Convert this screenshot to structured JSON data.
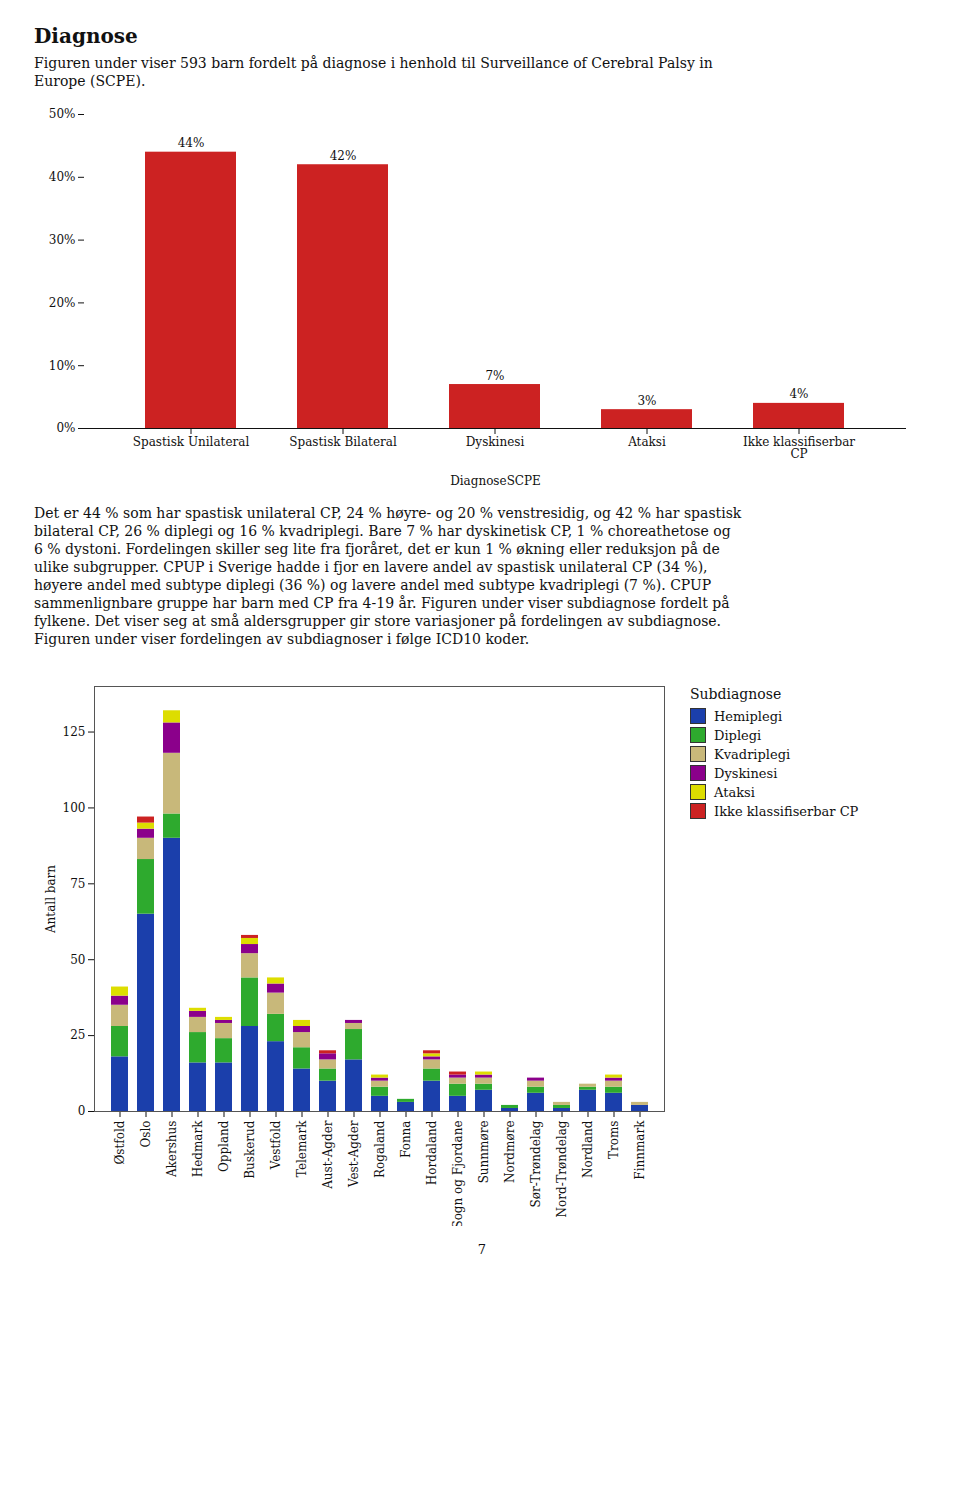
{
  "title": "Diagnose",
  "subtitle": "Figuren under viser 593 barn fordelt på diagnose i henhold til Surveillance of Cerebral Palsy in\nEurope (SCPE).",
  "annotations": [
    "Det er 44 % som har spastisk unilateral CP, 24 % høyre- og 20 % venstresidig, og 42 % har spastisk",
    "bilateral CP, 26 % diplegi og 16 % kvadriplegi. Bare 7 % har dyskinetisk CP, 1 % choreathetose og",
    "6 % dystoni. Fordelingen skiller seg lite fra fjoråret, det er kun 1 % økning eller reduksjon på de",
    "ulike subgrupper. CPUP i Sverige hadde i fjor en lavere andel av spastisk unilateral CP (34 %),",
    "høyere andel med subtype diplegi (36 %) og lavere andel med subtype kvadriplegi (7 %). CPUP",
    "sammenlignbare gruppe har barn med CP fra 4-19 år. Figuren under viser subdiagnose fordelt på",
    "fylkene. Det viser seg at små aldersgrupper gir store variasjoner på fordelingen av subdiagnose.",
    "Figuren under viser fordelingen av subdiagnoser i følge ICD10 koder."
  ],
  "page_number": "7",
  "chart_data": [
    {
      "type": "bar",
      "categories": [
        "Spastisk Unilateral",
        "Spastisk Bilateral",
        "Dyskinesi",
        "Ataksi",
        "Ikke klassifiserbar\nCP"
      ],
      "values": [
        44,
        42,
        7,
        3,
        4
      ],
      "value_labels": [
        "44%",
        "42%",
        "7%",
        "3%",
        "4%"
      ],
      "data_labels": true,
      "color": "#CC2222",
      "xlabel": "DiagnoseSCPE",
      "ylim": [
        0,
        50
      ],
      "yticks": [
        {
          "value": 0,
          "label": "0%"
        },
        {
          "value": 10,
          "label": "10%"
        },
        {
          "value": 20,
          "label": "20%"
        },
        {
          "value": 30,
          "label": "30%"
        },
        {
          "value": 40,
          "label": "40%"
        },
        {
          "value": 50,
          "label": "50%"
        }
      ]
    },
    {
      "type": "bar",
      "stacked": true,
      "categories": [
        "Østfold",
        "Oslo",
        "Akershus",
        "Hedmark",
        "Oppland",
        "Buskerud",
        "Vestfold",
        "Telemark",
        "Aust-Agder",
        "Vest-Agder",
        "Rogaland",
        "Fonna",
        "Hordaland",
        "Sogn og Fjordane",
        "Sunnmøre",
        "Nordmøre",
        "Sør-Trøndelag",
        "Nord-Trøndelag",
        "Nordland",
        "Troms",
        "Finnmark"
      ],
      "series": [
        {
          "name": "Hemiplegi",
          "color": "#1B3FAB",
          "values": [
            18,
            65,
            90,
            16,
            16,
            28,
            23,
            14,
            10,
            17,
            5,
            3,
            10,
            5,
            7,
            1,
            6,
            1,
            7,
            6,
            2
          ]
        },
        {
          "name": "Diplegi",
          "color": "#2EAA2E",
          "values": [
            10,
            18,
            8,
            10,
            8,
            16,
            9,
            7,
            4,
            10,
            3,
            1,
            4,
            4,
            2,
            1,
            2,
            1,
            1,
            2,
            0
          ]
        },
        {
          "name": "Kvadriplegi",
          "color": "#C8B87A",
          "values": [
            7,
            7,
            20,
            5,
            5,
            8,
            7,
            5,
            3,
            2,
            2,
            0,
            3,
            2,
            2,
            0,
            2,
            1,
            1,
            2,
            1
          ]
        },
        {
          "name": "Dyskinesi",
          "color": "#8B008B",
          "values": [
            3,
            3,
            10,
            2,
            1,
            3,
            3,
            2,
            2,
            1,
            1,
            0,
            1,
            1,
            1,
            0,
            1,
            0,
            0,
            1,
            0
          ]
        },
        {
          "name": "Ataksi",
          "color": "#DDDD00",
          "values": [
            3,
            2,
            4,
            1,
            1,
            2,
            2,
            2,
            0,
            0,
            1,
            0,
            1,
            0,
            1,
            0,
            0,
            0,
            0,
            1,
            0
          ]
        },
        {
          "name": "Ikke klassifiserbar CP",
          "color": "#CC2222",
          "values": [
            0,
            2,
            0,
            0,
            0,
            1,
            0,
            0,
            1,
            0,
            0,
            0,
            1,
            1,
            0,
            0,
            0,
            0,
            0,
            0,
            0
          ]
        }
      ],
      "ylabel": "Antall barn",
      "legend": "right",
      "legend_title": "Subdiagnose",
      "ylim": [
        0,
        140
      ],
      "yticks": [
        0,
        25,
        50,
        75,
        100,
        125
      ]
    }
  ]
}
